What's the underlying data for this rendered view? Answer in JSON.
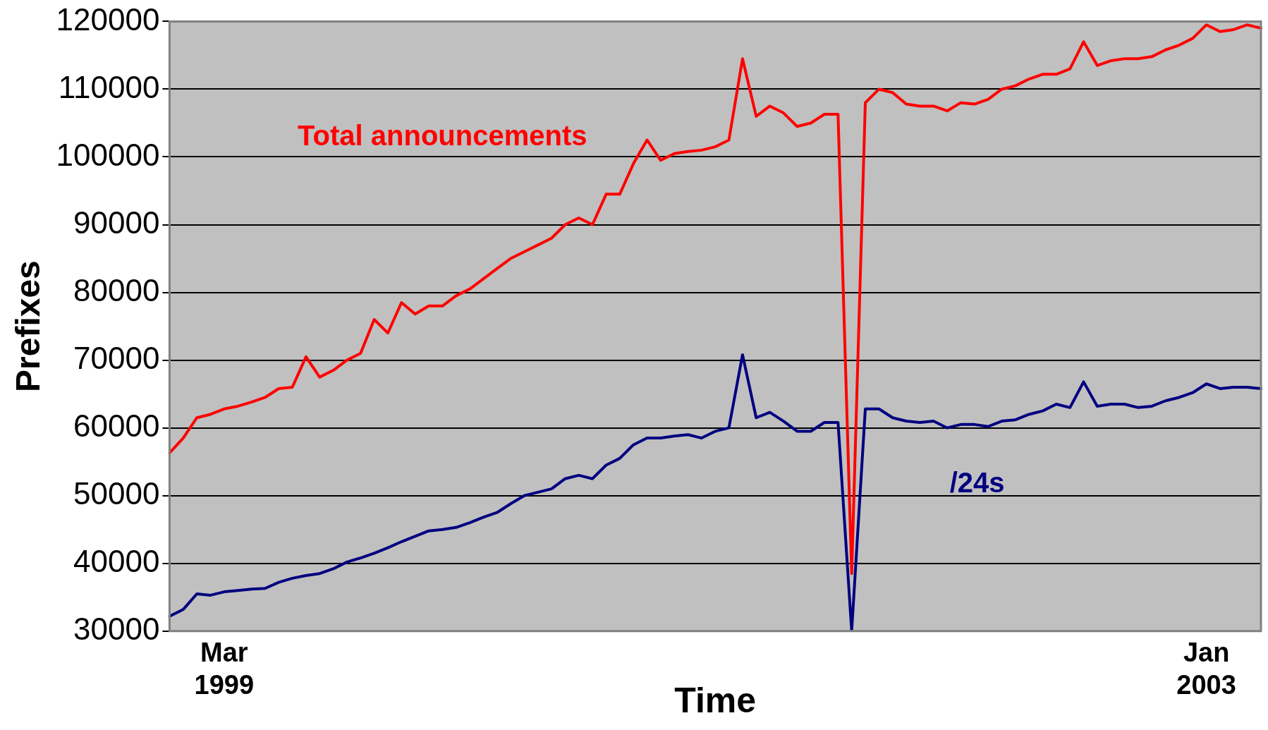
{
  "chart_data": {
    "type": "line",
    "xlabel": "Time",
    "ylabel": "Prefixes",
    "categories": [
      null,
      null,
      null,
      null,
      "Mar 1999",
      null,
      null,
      null,
      null,
      null,
      null,
      null,
      null,
      null,
      null,
      null,
      null,
      null,
      null,
      null,
      null,
      null,
      null,
      null,
      null,
      null,
      null,
      null,
      null,
      null,
      null,
      null,
      null,
      null,
      null,
      null,
      null,
      null,
      null,
      null,
      null,
      null,
      null,
      null,
      null,
      null,
      null,
      null,
      null,
      null,
      null,
      null,
      null,
      null,
      null,
      null,
      null,
      null,
      null,
      null,
      null,
      null,
      null,
      null,
      null,
      null,
      null,
      null,
      null,
      null,
      null,
      null,
      null,
      null,
      null,
      null,
      "Jan 2003",
      null,
      null,
      null,
      null
    ],
    "series": [
      {
        "name": "Total announcements",
        "color": "#ff0000",
        "values": [
          56300,
          58500,
          61500,
          62000,
          62800,
          63200,
          63800,
          64500,
          65800,
          66000,
          70500,
          67500,
          68500,
          70000,
          71000,
          76000,
          74000,
          78500,
          76800,
          78000,
          78000,
          79500,
          80500,
          82000,
          83500,
          85000,
          86000,
          87000,
          88000,
          90000,
          91000,
          90000,
          94500,
          94500,
          99000,
          102500,
          99500,
          100500,
          100800,
          101000,
          101500,
          102500,
          114500,
          106000,
          107500,
          106500,
          104500,
          105000,
          106300,
          106300,
          38500,
          108000,
          110000,
          109500,
          107800,
          107500,
          107500,
          106800,
          108000,
          107800,
          108500,
          110000,
          110500,
          111500,
          112200,
          112200,
          113000,
          117000,
          113500,
          114200,
          114500,
          114500,
          114800,
          115800,
          116500,
          117500,
          119500,
          118500,
          118800,
          119500,
          119000
        ]
      },
      {
        "name": "/24s",
        "color": "#000080",
        "values": [
          32200,
          33200,
          35500,
          35300,
          35800,
          36000,
          36200,
          36300,
          37200,
          37800,
          38200,
          38500,
          39200,
          40200,
          40800,
          41500,
          42300,
          43200,
          44000,
          44800,
          45000,
          45300,
          46000,
          46800,
          47500,
          48800,
          50000,
          50500,
          51000,
          52500,
          53000,
          52500,
          54500,
          55500,
          57500,
          58500,
          58500,
          58800,
          59000,
          58500,
          59500,
          60000,
          70800,
          61500,
          62300,
          61000,
          59500,
          59500,
          60800,
          60800,
          30000,
          62800,
          62800,
          61500,
          61000,
          60800,
          61000,
          60000,
          60500,
          60500,
          60200,
          61000,
          61200,
          62000,
          62500,
          63500,
          63000,
          66800,
          63200,
          63500,
          63500,
          63000,
          63200,
          64000,
          64500,
          65200,
          66500,
          65800,
          66000,
          66000,
          65800
        ]
      }
    ],
    "ylim": [
      30000,
      120000
    ],
    "yticks": [
      30000,
      40000,
      50000,
      60000,
      70000,
      80000,
      90000,
      100000,
      110000,
      120000
    ],
    "grid": "y",
    "legend": false,
    "marker": "none",
    "line_style": "solid"
  }
}
